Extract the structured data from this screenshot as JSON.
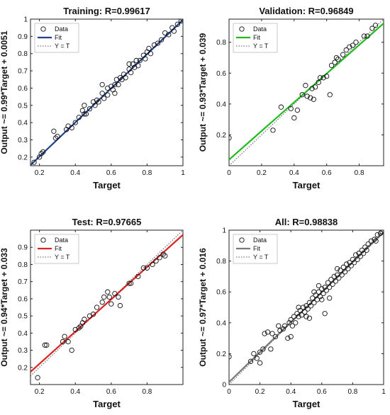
{
  "chart_data": [
    {
      "type": "scatter",
      "title": "Training: R=0.99617",
      "xlabel": "Target",
      "ylabel": "Output ~= 0.99*Target + 0.0051",
      "xlim": [
        0.15,
        1.0
      ],
      "ylim": [
        0.15,
        1.0
      ],
      "xticks": [
        "0.2",
        "0.4",
        "0.6",
        "0.8",
        "1"
      ],
      "yticks": [
        "0.2",
        "0.3",
        "0.4",
        "0.5",
        "0.6",
        "0.7",
        "0.8",
        "0.9",
        "1"
      ],
      "fit": {
        "slope": 0.99,
        "intercept": 0.0051,
        "color": "#1f3f8f"
      },
      "legend": {
        "placement": "top-left",
        "entries": [
          "Data",
          "Fit",
          "Y = T"
        ]
      },
      "grid": false,
      "points": [
        [
          0.17,
          0.17
        ],
        [
          0.2,
          0.2
        ],
        [
          0.21,
          0.22
        ],
        [
          0.22,
          0.23
        ],
        [
          0.28,
          0.35
        ],
        [
          0.29,
          0.31
        ],
        [
          0.3,
          0.32
        ],
        [
          0.35,
          0.36
        ],
        [
          0.36,
          0.38
        ],
        [
          0.38,
          0.37
        ],
        [
          0.4,
          0.4
        ],
        [
          0.42,
          0.43
        ],
        [
          0.44,
          0.47
        ],
        [
          0.45,
          0.45
        ],
        [
          0.46,
          0.45
        ],
        [
          0.48,
          0.48
        ],
        [
          0.5,
          0.52
        ],
        [
          0.51,
          0.5
        ],
        [
          0.52,
          0.53
        ],
        [
          0.53,
          0.52
        ],
        [
          0.55,
          0.57
        ],
        [
          0.56,
          0.54
        ],
        [
          0.58,
          0.56
        ],
        [
          0.58,
          0.6
        ],
        [
          0.6,
          0.61
        ],
        [
          0.61,
          0.59
        ],
        [
          0.62,
          0.62
        ],
        [
          0.63,
          0.65
        ],
        [
          0.64,
          0.62
        ],
        [
          0.65,
          0.66
        ],
        [
          0.66,
          0.65
        ],
        [
          0.67,
          0.68
        ],
        [
          0.68,
          0.66
        ],
        [
          0.7,
          0.71
        ],
        [
          0.71,
          0.69
        ],
        [
          0.72,
          0.74
        ],
        [
          0.73,
          0.72
        ],
        [
          0.74,
          0.76
        ],
        [
          0.75,
          0.73
        ],
        [
          0.76,
          0.76
        ],
        [
          0.78,
          0.79
        ],
        [
          0.79,
          0.77
        ],
        [
          0.8,
          0.81
        ],
        [
          0.81,
          0.83
        ],
        [
          0.82,
          0.8
        ],
        [
          0.84,
          0.85
        ],
        [
          0.86,
          0.86
        ],
        [
          0.88,
          0.88
        ],
        [
          0.9,
          0.92
        ],
        [
          0.92,
          0.91
        ],
        [
          0.94,
          0.95
        ],
        [
          0.95,
          0.93
        ],
        [
          0.97,
          0.97
        ],
        [
          0.99,
          0.99
        ],
        [
          1.0,
          1.0
        ],
        [
          0.55,
          0.62
        ],
        [
          0.62,
          0.57
        ],
        [
          0.7,
          0.74
        ],
        [
          0.45,
          0.5
        ]
      ]
    },
    {
      "type": "scatter",
      "title": "Validation: R=0.96849",
      "xlabel": "Target",
      "ylabel": "Output ~= 0.93*Target + 0.039",
      "xlim": [
        0.0,
        0.95
      ],
      "ylim": [
        0.0,
        0.95
      ],
      "xticks": [
        "0",
        "0.2",
        "0.4",
        "0.6",
        "0.8"
      ],
      "yticks": [
        "0.2",
        "0.4",
        "0.6",
        "0.8"
      ],
      "fit": {
        "slope": 0.93,
        "intercept": 0.039,
        "color": "#22bb22"
      },
      "legend": {
        "placement": "top-left",
        "entries": [
          "Data",
          "Fit",
          "Y = T"
        ]
      },
      "grid": false,
      "points": [
        [
          0.0,
          0.18
        ],
        [
          0.27,
          0.23
        ],
        [
          0.32,
          0.38
        ],
        [
          0.38,
          0.37
        ],
        [
          0.4,
          0.31
        ],
        [
          0.42,
          0.36
        ],
        [
          0.45,
          0.46
        ],
        [
          0.47,
          0.52
        ],
        [
          0.48,
          0.45
        ],
        [
          0.5,
          0.44
        ],
        [
          0.51,
          0.5
        ],
        [
          0.52,
          0.43
        ],
        [
          0.53,
          0.51
        ],
        [
          0.55,
          0.54
        ],
        [
          0.56,
          0.57
        ],
        [
          0.58,
          0.57
        ],
        [
          0.6,
          0.58
        ],
        [
          0.62,
          0.46
        ],
        [
          0.63,
          0.65
        ],
        [
          0.65,
          0.67
        ],
        [
          0.66,
          0.7
        ],
        [
          0.67,
          0.69
        ],
        [
          0.7,
          0.72
        ],
        [
          0.72,
          0.75
        ],
        [
          0.74,
          0.77
        ],
        [
          0.76,
          0.78
        ],
        [
          0.78,
          0.8
        ],
        [
          0.83,
          0.84
        ],
        [
          0.85,
          0.84
        ],
        [
          0.88,
          0.89
        ],
        [
          0.9,
          0.91
        ]
      ]
    },
    {
      "type": "scatter",
      "title": "Test: R=0.97665",
      "xlabel": "Target",
      "ylabel": "Output ~= 0.94*Target + 0.033",
      "xlim": [
        0.15,
        1.0
      ],
      "ylim": [
        0.1,
        1.0
      ],
      "xticks": [
        "0.2",
        "0.4",
        "0.6",
        "0.8"
      ],
      "yticks": [
        "0.2",
        "0.3",
        "0.4",
        "0.5",
        "0.6",
        "0.7",
        "0.8",
        "0.9"
      ],
      "fit": {
        "slope": 0.94,
        "intercept": 0.033,
        "color": "#dd2222"
      },
      "legend": {
        "placement": "top-left",
        "entries": [
          "Data",
          "Fit",
          "Y = T"
        ]
      },
      "grid": false,
      "points": [
        [
          0.19,
          0.14
        ],
        [
          0.23,
          0.33
        ],
        [
          0.24,
          0.33
        ],
        [
          0.33,
          0.35
        ],
        [
          0.34,
          0.38
        ],
        [
          0.36,
          0.35
        ],
        [
          0.38,
          0.3
        ],
        [
          0.4,
          0.42
        ],
        [
          0.42,
          0.43
        ],
        [
          0.43,
          0.44
        ],
        [
          0.44,
          0.46
        ],
        [
          0.45,
          0.48
        ],
        [
          0.48,
          0.5
        ],
        [
          0.5,
          0.51
        ],
        [
          0.52,
          0.55
        ],
        [
          0.55,
          0.58
        ],
        [
          0.56,
          0.61
        ],
        [
          0.58,
          0.64
        ],
        [
          0.59,
          0.61
        ],
        [
          0.6,
          0.57
        ],
        [
          0.62,
          0.63
        ],
        [
          0.64,
          0.61
        ],
        [
          0.65,
          0.56
        ],
        [
          0.7,
          0.69
        ],
        [
          0.71,
          0.69
        ],
        [
          0.75,
          0.73
        ],
        [
          0.78,
          0.78
        ],
        [
          0.8,
          0.78
        ],
        [
          0.83,
          0.8
        ],
        [
          0.85,
          0.82
        ],
        [
          0.87,
          0.84
        ],
        [
          0.89,
          0.86
        ],
        [
          0.9,
          0.85
        ]
      ]
    },
    {
      "type": "scatter",
      "title": "All: R=0.98838",
      "xlabel": "Target",
      "ylabel": "Output ~= 0.97*Target + 0.016",
      "xlim": [
        0.0,
        1.0
      ],
      "ylim": [
        0.0,
        1.0
      ],
      "xticks": [
        "0",
        "0.2",
        "0.4",
        "0.6",
        "0.8",
        "1"
      ],
      "yticks": [
        "0",
        "0.2",
        "0.4",
        "0.6",
        "0.8",
        "1"
      ],
      "fit": {
        "slope": 0.97,
        "intercept": 0.016,
        "color": "#777777"
      },
      "legend": {
        "placement": "top-left",
        "entries": [
          "Data",
          "Fit",
          "Y = T"
        ]
      },
      "grid": false,
      "points": [
        [
          0.0,
          0.18
        ],
        [
          0.14,
          0.15
        ],
        [
          0.16,
          0.2
        ],
        [
          0.18,
          0.17
        ],
        [
          0.2,
          0.21
        ],
        [
          0.22,
          0.23
        ],
        [
          0.23,
          0.33
        ],
        [
          0.25,
          0.34
        ],
        [
          0.27,
          0.23
        ],
        [
          0.28,
          0.33
        ],
        [
          0.3,
          0.31
        ],
        [
          0.32,
          0.38
        ],
        [
          0.33,
          0.35
        ],
        [
          0.35,
          0.36
        ],
        [
          0.36,
          0.38
        ],
        [
          0.38,
          0.3
        ],
        [
          0.39,
          0.4
        ],
        [
          0.4,
          0.42
        ],
        [
          0.41,
          0.38
        ],
        [
          0.42,
          0.44
        ],
        [
          0.43,
          0.4
        ],
        [
          0.44,
          0.46
        ],
        [
          0.45,
          0.44
        ],
        [
          0.46,
          0.48
        ],
        [
          0.47,
          0.45
        ],
        [
          0.48,
          0.5
        ],
        [
          0.49,
          0.47
        ],
        [
          0.5,
          0.51
        ],
        [
          0.51,
          0.49
        ],
        [
          0.52,
          0.53
        ],
        [
          0.53,
          0.51
        ],
        [
          0.54,
          0.56
        ],
        [
          0.55,
          0.53
        ],
        [
          0.56,
          0.58
        ],
        [
          0.57,
          0.55
        ],
        [
          0.58,
          0.6
        ],
        [
          0.59,
          0.57
        ],
        [
          0.6,
          0.62
        ],
        [
          0.61,
          0.59
        ],
        [
          0.62,
          0.63
        ],
        [
          0.63,
          0.61
        ],
        [
          0.64,
          0.66
        ],
        [
          0.65,
          0.63
        ],
        [
          0.66,
          0.68
        ],
        [
          0.67,
          0.65
        ],
        [
          0.68,
          0.7
        ],
        [
          0.69,
          0.67
        ],
        [
          0.7,
          0.71
        ],
        [
          0.71,
          0.69
        ],
        [
          0.72,
          0.74
        ],
        [
          0.73,
          0.71
        ],
        [
          0.74,
          0.76
        ],
        [
          0.75,
          0.73
        ],
        [
          0.76,
          0.78
        ],
        [
          0.77,
          0.75
        ],
        [
          0.78,
          0.79
        ],
        [
          0.79,
          0.77
        ],
        [
          0.8,
          0.81
        ],
        [
          0.81,
          0.79
        ],
        [
          0.82,
          0.84
        ],
        [
          0.83,
          0.81
        ],
        [
          0.84,
          0.85
        ],
        [
          0.85,
          0.83
        ],
        [
          0.86,
          0.87
        ],
        [
          0.87,
          0.85
        ],
        [
          0.88,
          0.89
        ],
        [
          0.89,
          0.87
        ],
        [
          0.9,
          0.91
        ],
        [
          0.92,
          0.93
        ],
        [
          0.94,
          0.94
        ],
        [
          0.95,
          0.93
        ],
        [
          0.96,
          0.97
        ],
        [
          0.98,
          0.98
        ],
        [
          0.99,
          0.99
        ],
        [
          1.0,
          1.0
        ],
        [
          0.62,
          0.46
        ],
        [
          0.65,
          0.56
        ],
        [
          0.6,
          0.55
        ],
        [
          0.5,
          0.44
        ],
        [
          0.55,
          0.6
        ],
        [
          0.58,
          0.64
        ],
        [
          0.45,
          0.5
        ],
        [
          0.52,
          0.43
        ],
        [
          0.7,
          0.75
        ],
        [
          0.4,
          0.31
        ],
        [
          0.2,
          0.14
        ]
      ]
    }
  ]
}
